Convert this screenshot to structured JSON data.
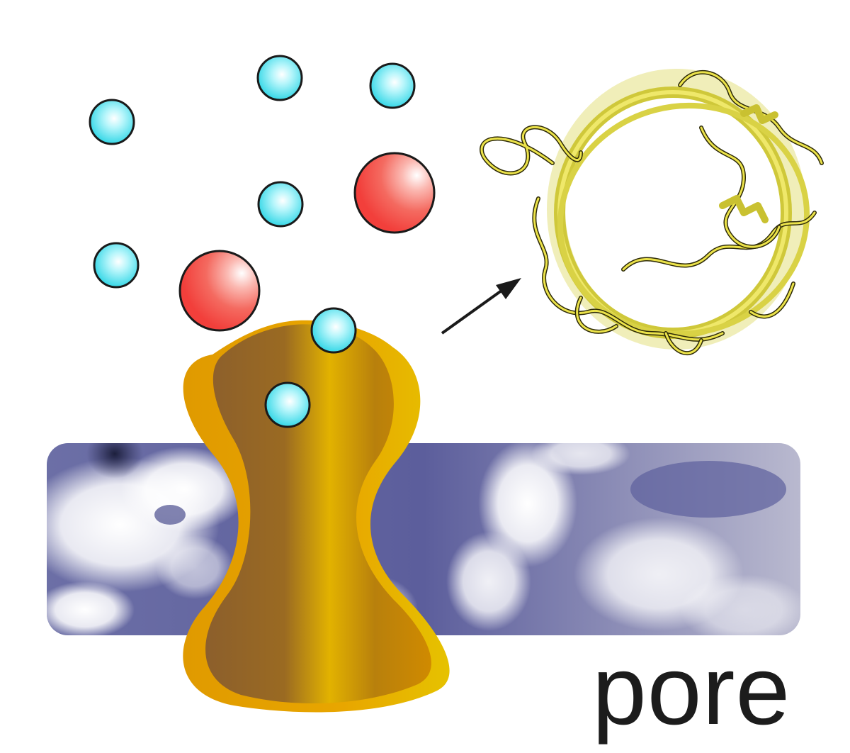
{
  "label": "pore",
  "colors": {
    "background": "#ffffff",
    "ion_small": "#3fe0ee",
    "ion_large": "#f4524d",
    "pore_outer": "#e8a000",
    "pore_inner": "#8e6228",
    "membrane": "#5c5e9c",
    "protein": "#e6df3a",
    "arrow": "#1a1a1a",
    "text": "#1c1c1c"
  },
  "icons": [
    "small-ion",
    "large-ion",
    "pore-channel",
    "membrane-bilayer",
    "protein-structure",
    "arrow-icon"
  ]
}
